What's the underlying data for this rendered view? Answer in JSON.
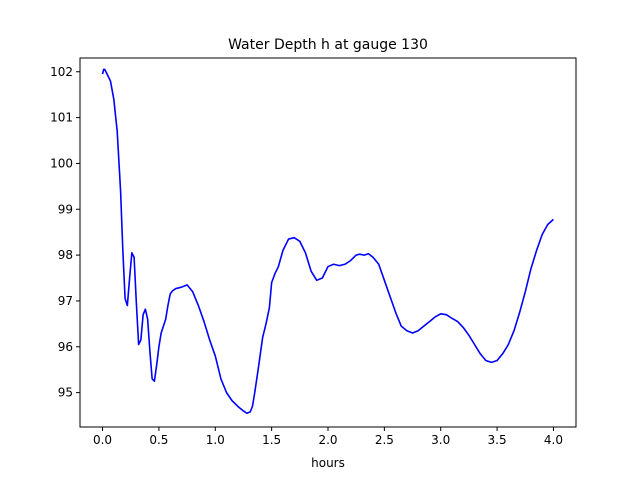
{
  "chart_data": {
    "type": "line",
    "title": "Water Depth h at gauge 130",
    "xlabel": "hours",
    "ylabel": "",
    "xlim": [
      -0.2,
      4.2
    ],
    "ylim": [
      94.25,
      102.3
    ],
    "xticks": [
      0.0,
      0.5,
      1.0,
      1.5,
      2.0,
      2.5,
      3.0,
      3.5,
      4.0
    ],
    "xtick_labels": [
      "0.0",
      "0.5",
      "1.0",
      "1.5",
      "2.0",
      "2.5",
      "3.0",
      "3.5",
      "4.0"
    ],
    "yticks": [
      95,
      96,
      97,
      98,
      99,
      100,
      101,
      102
    ],
    "ytick_labels": [
      "95",
      "96",
      "97",
      "98",
      "99",
      "100",
      "101",
      "102"
    ],
    "grid": false,
    "series": [
      {
        "color": "#0000ff",
        "x": [
          0.0,
          0.01,
          0.02,
          0.04,
          0.07,
          0.1,
          0.13,
          0.16,
          0.18,
          0.2,
          0.22,
          0.24,
          0.26,
          0.28,
          0.3,
          0.32,
          0.34,
          0.36,
          0.38,
          0.4,
          0.42,
          0.44,
          0.46,
          0.48,
          0.5,
          0.52,
          0.54,
          0.56,
          0.58,
          0.6,
          0.62,
          0.65,
          0.7,
          0.75,
          0.8,
          0.85,
          0.9,
          0.95,
          1.0,
          1.05,
          1.1,
          1.15,
          1.18,
          1.2,
          1.22,
          1.25,
          1.28,
          1.31,
          1.33,
          1.35,
          1.38,
          1.42,
          1.45,
          1.48,
          1.5,
          1.53,
          1.56,
          1.6,
          1.65,
          1.7,
          1.75,
          1.8,
          1.85,
          1.9,
          1.95,
          2.0,
          2.05,
          2.1,
          2.15,
          2.2,
          2.25,
          2.28,
          2.32,
          2.36,
          2.4,
          2.45,
          2.5,
          2.55,
          2.6,
          2.65,
          2.7,
          2.75,
          2.8,
          2.85,
          2.9,
          2.95,
          3.0,
          3.05,
          3.1,
          3.15,
          3.2,
          3.25,
          3.3,
          3.35,
          3.4,
          3.45,
          3.5,
          3.55,
          3.6,
          3.65,
          3.7,
          3.75,
          3.8,
          3.85,
          3.9,
          3.95,
          4.0
        ],
        "y": [
          101.95,
          102.05,
          102.05,
          101.95,
          101.8,
          101.4,
          100.7,
          99.4,
          98.1,
          97.05,
          96.9,
          97.5,
          98.05,
          97.95,
          96.95,
          96.05,
          96.15,
          96.7,
          96.82,
          96.6,
          95.9,
          95.3,
          95.25,
          95.6,
          96.0,
          96.3,
          96.45,
          96.6,
          96.9,
          97.15,
          97.22,
          97.27,
          97.3,
          97.35,
          97.2,
          96.9,
          96.55,
          96.15,
          95.8,
          95.3,
          95.0,
          94.82,
          94.75,
          94.7,
          94.66,
          94.6,
          94.55,
          94.58,
          94.7,
          95.0,
          95.5,
          96.2,
          96.5,
          96.85,
          97.4,
          97.6,
          97.75,
          98.1,
          98.35,
          98.38,
          98.3,
          98.05,
          97.65,
          97.45,
          97.5,
          97.75,
          97.8,
          97.77,
          97.8,
          97.88,
          98.0,
          98.02,
          98.0,
          98.03,
          97.95,
          97.8,
          97.45,
          97.1,
          96.75,
          96.45,
          96.35,
          96.3,
          96.35,
          96.45,
          96.55,
          96.65,
          96.72,
          96.7,
          96.62,
          96.55,
          96.42,
          96.25,
          96.05,
          95.85,
          95.7,
          95.66,
          95.7,
          95.85,
          96.05,
          96.35,
          96.75,
          97.2,
          97.7,
          98.1,
          98.45,
          98.67,
          98.78
        ]
      }
    ]
  }
}
